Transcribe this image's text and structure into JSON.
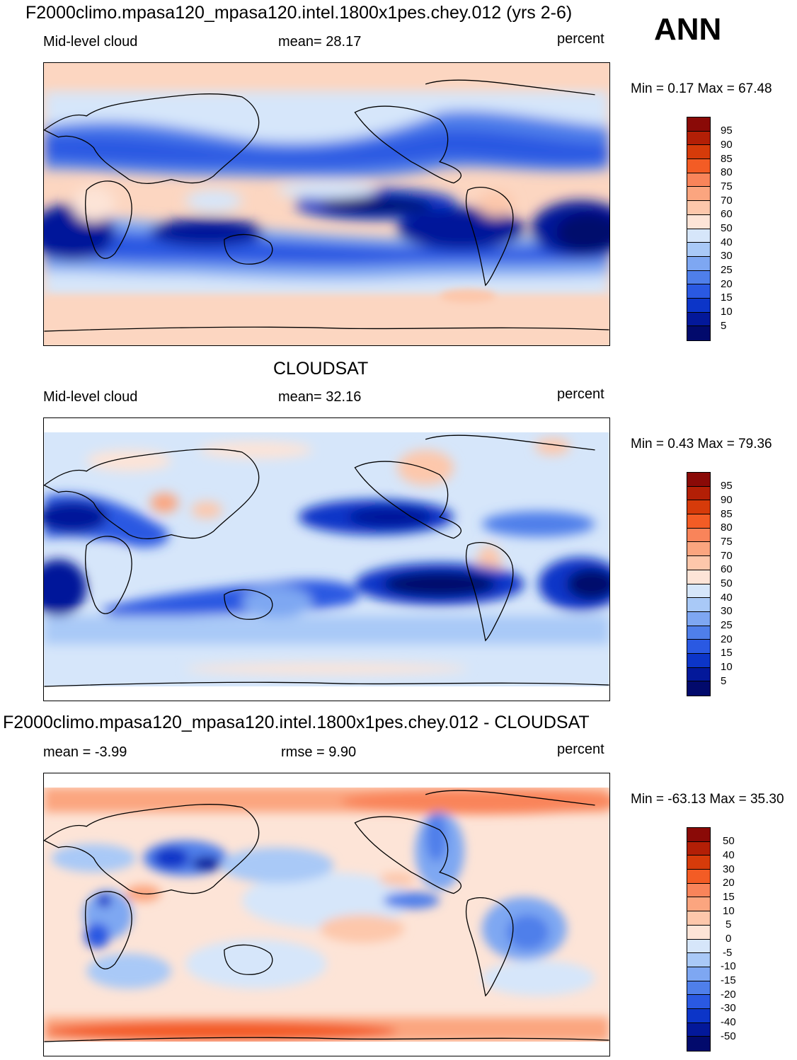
{
  "header": {
    "title_model": "F2000climo.mpasa120_mpasa120.intel.1800x1pes.chey.012 (yrs 2-6)",
    "season": "ANN"
  },
  "panels": [
    {
      "id": "model",
      "title": "",
      "left_label": "Mid-level cloud",
      "center_label": "mean=  28.17",
      "units": "percent",
      "minmax": "Min =   0.17 Max =  67.48",
      "colorbar": {
        "labels": [
          "95",
          "90",
          "85",
          "80",
          "75",
          "70",
          "60",
          "50",
          "40",
          "30",
          "25",
          "20",
          "15",
          "10",
          "5"
        ],
        "colors": [
          "#8a0a07",
          "#b31f06",
          "#d63b0a",
          "#f35c25",
          "#f9845a",
          "#fba57f",
          "#fdc7ab",
          "#fde4d7",
          "#d6e6fa",
          "#a9c9f7",
          "#7ea7f2",
          "#4f7fea",
          "#2a59e2",
          "#0c35c8",
          "#03189a",
          "#020a6c"
        ]
      }
    },
    {
      "id": "obs",
      "title": "CLOUDSAT",
      "left_label": "Mid-level cloud",
      "center_label": "mean=  32.16",
      "units": "percent",
      "minmax": "Min =   0.43 Max =  79.36",
      "colorbar": {
        "labels": [
          "95",
          "90",
          "85",
          "80",
          "75",
          "70",
          "60",
          "50",
          "40",
          "30",
          "25",
          "20",
          "15",
          "10",
          "5"
        ],
        "colors": [
          "#8a0a07",
          "#b31f06",
          "#d63b0a",
          "#f35c25",
          "#f9845a",
          "#fba57f",
          "#fdc7ab",
          "#fde4d7",
          "#d6e6fa",
          "#a9c9f7",
          "#7ea7f2",
          "#4f7fea",
          "#2a59e2",
          "#0c35c8",
          "#03189a",
          "#020a6c"
        ]
      }
    },
    {
      "id": "diff",
      "title": "F2000climo.mpasa120_mpasa120.intel.1800x1pes.chey.012 - CLOUDSAT",
      "left_label": "mean =  -3.99",
      "center_label": "rmse =    9.90",
      "units": "percent",
      "minmax": "Min = -63.13 Max =  35.30",
      "colorbar": {
        "labels": [
          "50",
          "40",
          "30",
          "20",
          "15",
          "10",
          "5",
          "0",
          "-5",
          "-10",
          "-15",
          "-20",
          "-30",
          "-40",
          "-50"
        ],
        "colors": [
          "#8a0a07",
          "#b31f06",
          "#d63b0a",
          "#f35c25",
          "#f9845a",
          "#fba57f",
          "#fdc7ab",
          "#fde4d7",
          "#d6e6fa",
          "#a9c9f7",
          "#7ea7f2",
          "#4f7fea",
          "#2a59e2",
          "#0c35c8",
          "#03189a",
          "#020a6c"
        ]
      }
    }
  ]
}
